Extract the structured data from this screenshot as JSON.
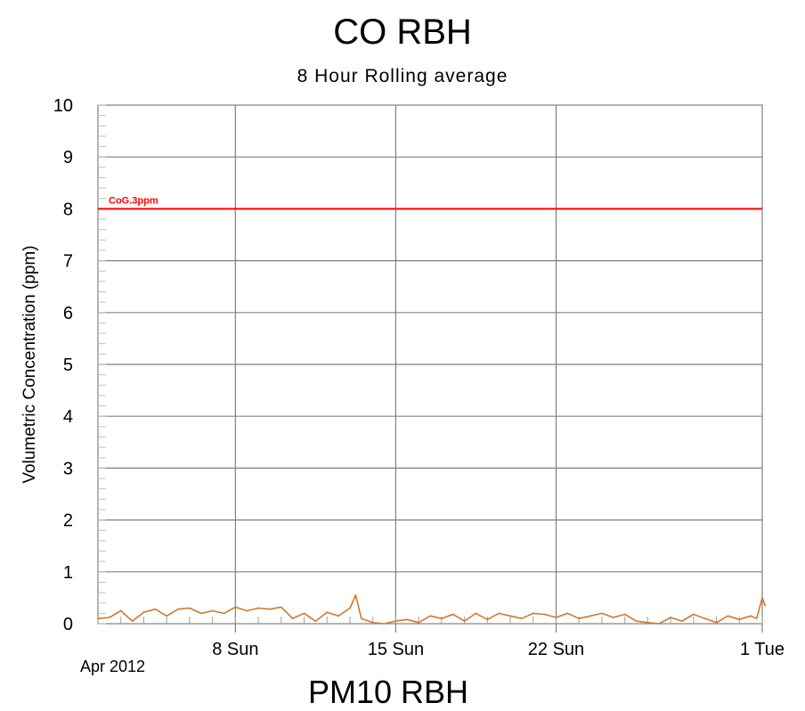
{
  "chart_data": {
    "type": "line",
    "title": "CO RBH",
    "subtitle": "8 Hour Rolling average",
    "ylabel": "Volumetric Concentration (ppm)",
    "xlabel": "",
    "ylim": [
      0,
      10
    ],
    "yticks": [
      "0",
      "1",
      "2",
      "3",
      "4",
      "5",
      "6",
      "7",
      "8",
      "9",
      "10"
    ],
    "xlim": [
      "2012-04-02",
      "2012-05-01"
    ],
    "xticks": [
      {
        "date": "2012-04-08",
        "label": "8 Sun"
      },
      {
        "date": "2012-04-15",
        "label": "15 Sun"
      },
      {
        "date": "2012-04-22",
        "label": "22 Sun"
      },
      {
        "date": "2012-05-01",
        "label": "1 Tue"
      }
    ],
    "date_caption": "Apr 2012",
    "grid": true,
    "reference_line": {
      "label": "CoG.3ppm",
      "value": 8,
      "color": "#ff0000"
    },
    "series": [
      {
        "color": "#d07830",
        "points": [
          [
            "2012-04-02 00:00",
            0.1
          ],
          [
            "2012-04-02 12:00",
            0.12
          ],
          [
            "2012-04-03 00:00",
            0.25
          ],
          [
            "2012-04-03 12:00",
            0.05
          ],
          [
            "2012-04-04 00:00",
            0.22
          ],
          [
            "2012-04-04 12:00",
            0.28
          ],
          [
            "2012-04-05 00:00",
            0.15
          ],
          [
            "2012-04-05 12:00",
            0.28
          ],
          [
            "2012-04-06 00:00",
            0.3
          ],
          [
            "2012-04-06 12:00",
            0.2
          ],
          [
            "2012-04-07 00:00",
            0.25
          ],
          [
            "2012-04-07 12:00",
            0.2
          ],
          [
            "2012-04-08 00:00",
            0.32
          ],
          [
            "2012-04-08 12:00",
            0.25
          ],
          [
            "2012-04-09 00:00",
            0.3
          ],
          [
            "2012-04-09 12:00",
            0.28
          ],
          [
            "2012-04-10 00:00",
            0.32
          ],
          [
            "2012-04-10 12:00",
            0.1
          ],
          [
            "2012-04-11 00:00",
            0.2
          ],
          [
            "2012-04-11 12:00",
            0.05
          ],
          [
            "2012-04-12 00:00",
            0.22
          ],
          [
            "2012-04-12 12:00",
            0.15
          ],
          [
            "2012-04-13 00:00",
            0.3
          ],
          [
            "2012-04-13 06:00",
            0.55
          ],
          [
            "2012-04-13 12:00",
            0.1
          ],
          [
            "2012-04-14 00:00",
            0.02
          ],
          [
            "2012-04-14 12:00",
            0.0
          ],
          [
            "2012-04-15 00:00",
            0.05
          ],
          [
            "2012-04-15 12:00",
            0.08
          ],
          [
            "2012-04-16 00:00",
            0.02
          ],
          [
            "2012-04-16 12:00",
            0.15
          ],
          [
            "2012-04-17 00:00",
            0.1
          ],
          [
            "2012-04-17 12:00",
            0.18
          ],
          [
            "2012-04-18 00:00",
            0.05
          ],
          [
            "2012-04-18 12:00",
            0.2
          ],
          [
            "2012-04-19 00:00",
            0.08
          ],
          [
            "2012-04-19 12:00",
            0.2
          ],
          [
            "2012-04-20 00:00",
            0.15
          ],
          [
            "2012-04-20 12:00",
            0.1
          ],
          [
            "2012-04-21 00:00",
            0.2
          ],
          [
            "2012-04-21 12:00",
            0.18
          ],
          [
            "2012-04-22 00:00",
            0.12
          ],
          [
            "2012-04-22 12:00",
            0.2
          ],
          [
            "2012-04-23 00:00",
            0.1
          ],
          [
            "2012-04-23 12:00",
            0.15
          ],
          [
            "2012-04-24 00:00",
            0.2
          ],
          [
            "2012-04-24 12:00",
            0.12
          ],
          [
            "2012-04-25 00:00",
            0.18
          ],
          [
            "2012-04-25 12:00",
            0.05
          ],
          [
            "2012-04-26 00:00",
            0.02
          ],
          [
            "2012-04-26 12:00",
            0.0
          ],
          [
            "2012-04-27 00:00",
            0.12
          ],
          [
            "2012-04-27 12:00",
            0.05
          ],
          [
            "2012-04-28 00:00",
            0.18
          ],
          [
            "2012-04-28 12:00",
            0.1
          ],
          [
            "2012-04-29 00:00",
            0.02
          ],
          [
            "2012-04-29 12:00",
            0.15
          ],
          [
            "2012-04-30 00:00",
            0.08
          ],
          [
            "2012-04-30 12:00",
            0.15
          ],
          [
            "2012-04-30 18:00",
            0.1
          ],
          [
            "2012-05-01 00:00",
            0.5
          ],
          [
            "2012-05-01 03:00",
            0.35
          ]
        ]
      }
    ]
  },
  "next_chart_title": "PM10 RBH"
}
